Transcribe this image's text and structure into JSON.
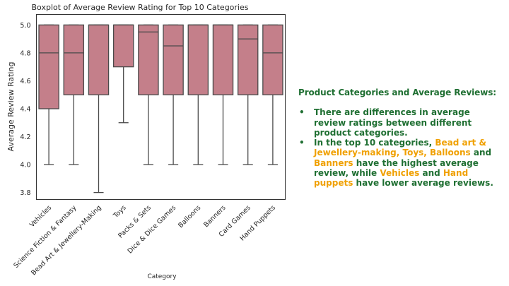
{
  "chart_data": {
    "type": "boxplot",
    "title": "Boxplot of Average Review Rating for Top 10 Categories",
    "xlabel": "Category",
    "ylabel": "Average Review Rating",
    "ylim": [
      3.75,
      5.075
    ],
    "yticks": [
      "3.8",
      "4.0",
      "4.2",
      "4.4",
      "4.6",
      "4.8",
      "5.0"
    ],
    "ytick_values": [
      3.8,
      4.0,
      4.2,
      4.4,
      4.6,
      4.8,
      5.0
    ],
    "box_color": "#c47f8a",
    "edge_color": "#4a4a4a",
    "grid": false,
    "categories": [
      "Vehicles",
      "Science Fiction & Fantasy",
      "Bead Art & Jewellery-Making",
      "Toys",
      "Packs & Sets",
      "Dice & Dice Games",
      "Balloons",
      "Banners",
      "Card Games",
      "Hand Puppets"
    ],
    "boxes": [
      {
        "whisker_low": 4.0,
        "q1": 4.4,
        "median": 4.8,
        "q3": 5.0,
        "whisker_high": 5.0
      },
      {
        "whisker_low": 4.0,
        "q1": 4.5,
        "median": 4.8,
        "q3": 5.0,
        "whisker_high": 5.0
      },
      {
        "whisker_low": 3.8,
        "q1": 4.5,
        "median": 5.0,
        "q3": 5.0,
        "whisker_high": 5.0
      },
      {
        "whisker_low": 4.3,
        "q1": 4.7,
        "median": 5.0,
        "q3": 5.0,
        "whisker_high": 5.0
      },
      {
        "whisker_low": 4.0,
        "q1": 4.5,
        "median": 4.95,
        "q3": 5.0,
        "whisker_high": 5.0
      },
      {
        "whisker_low": 4.0,
        "q1": 4.5,
        "median": 4.85,
        "q3": 5.0,
        "whisker_high": 5.0
      },
      {
        "whisker_low": 4.0,
        "q1": 4.5,
        "median": 5.0,
        "q3": 5.0,
        "whisker_high": 5.0
      },
      {
        "whisker_low": 4.0,
        "q1": 4.5,
        "median": 5.0,
        "q3": 5.0,
        "whisker_high": 5.0
      },
      {
        "whisker_low": 4.0,
        "q1": 4.5,
        "median": 4.9,
        "q3": 5.0,
        "whisker_high": 5.0
      },
      {
        "whisker_low": 4.0,
        "q1": 4.5,
        "median": 4.8,
        "q3": 5.0,
        "whisker_high": 5.0
      }
    ]
  },
  "panel": {
    "heading": "Product Categories and Average Reviews:",
    "bullet_char": "•",
    "bullet1": "There are differences in average review ratings between different product categories.",
    "bullet2": {
      "p1": "In the top 10 categories, ",
      "h1": "Bead art & Jewellery-making, Toys, Balloons",
      "p2": " and ",
      "h2": "Banners",
      "p3": " have the highest average review, while ",
      "h3": "Vehicles",
      "p4": " and ",
      "h4": "Hand puppets",
      "p5": " have lower average reviews."
    },
    "text_color": "#1f6f32",
    "highlight_color": "#f0a000"
  }
}
